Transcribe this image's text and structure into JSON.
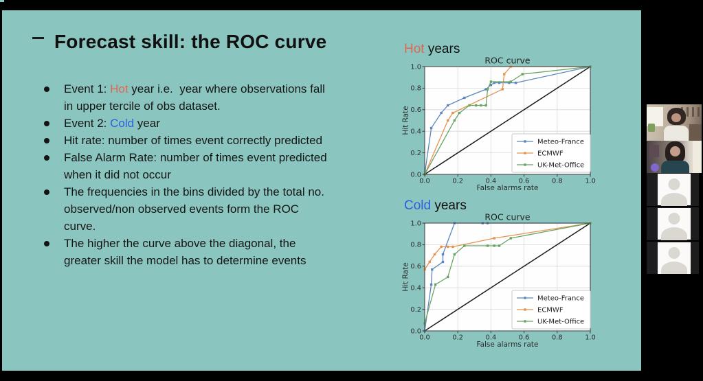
{
  "window": {
    "background": "#000000"
  },
  "slide": {
    "background": "#8ac6bf",
    "title": "Forecast skill: the ROC curve",
    "bullets": [
      {
        "segments": [
          {
            "text": "Event 1: "
          },
          {
            "text": "Hot",
            "color": "#dd6750"
          },
          {
            "text": " year i.e.  year where observations fall\nin upper tercile of obs dataset."
          }
        ]
      },
      {
        "segments": [
          {
            "text": "Event 2: "
          },
          {
            "text": "Cold",
            "color": "#2e5ee0"
          },
          {
            "text": " year"
          }
        ]
      },
      {
        "segments": [
          {
            "text": "Hit rate: number of times event correctly predicted"
          }
        ]
      },
      {
        "segments": [
          {
            "text": "False Alarm Rate: number of times event predicted\nwhen it did not occur"
          }
        ]
      },
      {
        "segments": [
          {
            "text": "The frequencies in the bins divided by the total no.\nobserved/non observed events form the ROC\ncurve."
          }
        ]
      },
      {
        "segments": [
          {
            "text": "The higher the curve above the diagonal, the\ngreater skill the model has to determine events"
          }
        ]
      }
    ]
  },
  "chart_style": {
    "plot_bg": "#fefefe",
    "grid_color": "#d8d8d8",
    "axis_color": "#3a3a3a",
    "text_color": "#2b2b2b",
    "diagonal_color": "#1c1c1c",
    "legend_bg": "#ffffff",
    "legend_border": "#c9c9c9"
  },
  "chart_data": [
    {
      "id": "hot",
      "type": "line",
      "panel_label": {
        "highlight": "Hot",
        "rest": " years",
        "highlight_color": "#dd6750"
      },
      "title": "ROC curve",
      "xlabel": "False alarms rate",
      "ylabel": "Hit Rate",
      "xlim": [
        0,
        1
      ],
      "ylim": [
        0,
        1
      ],
      "xticks": [
        "0.0",
        "0.2",
        "0.4",
        "0.6",
        "0.8",
        "1.0"
      ],
      "yticks": [
        "0.0",
        "0.2",
        "0.4",
        "0.6",
        "0.8",
        "1.0"
      ],
      "grid": true,
      "diagonal": true,
      "legend_position": "lower right",
      "series": [
        {
          "name": "Meteo-France",
          "color": "#5a87bd",
          "points": [
            [
              0,
              0
            ],
            [
              0.04,
              0.43
            ],
            [
              0.1,
              0.57
            ],
            [
              0.14,
              0.64
            ],
            [
              0.24,
              0.71
            ],
            [
              0.37,
              0.79
            ],
            [
              0.4,
              0.83
            ],
            [
              0.42,
              0.85
            ],
            [
              0.45,
              0.85
            ],
            [
              0.51,
              0.85
            ],
            [
              0.55,
              0.85
            ],
            [
              1.0,
              1.0
            ]
          ]
        },
        {
          "name": "ECMWF",
          "color": "#e59350",
          "points": [
            [
              0,
              0
            ],
            [
              0.14,
              0.5
            ],
            [
              0.17,
              0.57
            ],
            [
              0.47,
              0.79
            ],
            [
              0.48,
              0.93
            ],
            [
              0.52,
              1.0
            ],
            [
              1.0,
              1.0
            ]
          ]
        },
        {
          "name": "UK-Met-Office",
          "color": "#68a563",
          "points": [
            [
              0,
              0
            ],
            [
              0.18,
              0.5
            ],
            [
              0.21,
              0.57
            ],
            [
              0.27,
              0.64
            ],
            [
              0.31,
              0.64
            ],
            [
              0.34,
              0.64
            ],
            [
              0.37,
              0.64
            ],
            [
              0.38,
              0.79
            ],
            [
              0.4,
              0.86
            ],
            [
              0.52,
              0.86
            ],
            [
              0.59,
              0.93
            ],
            [
              1.0,
              1.0
            ]
          ]
        }
      ]
    },
    {
      "id": "cold",
      "type": "line",
      "panel_label": {
        "highlight": "Cold",
        "rest": " years",
        "highlight_color": "#2e5ee0"
      },
      "title": "ROC curve",
      "xlabel": "False alarms rate",
      "ylabel": "Hit Rate",
      "xlim": [
        0,
        1
      ],
      "ylim": [
        0,
        1
      ],
      "xticks": [
        "0.0",
        "0.2",
        "0.4",
        "0.6",
        "0.8",
        "1.0"
      ],
      "yticks": [
        "0.0",
        "0.2",
        "0.4",
        "0.6",
        "0.8",
        "1.0"
      ],
      "grid": true,
      "diagonal": true,
      "legend_position": "lower right",
      "series": [
        {
          "name": "Meteo-France",
          "color": "#5a87bd",
          "points": [
            [
              0,
              0
            ],
            [
              0.04,
              0.43
            ],
            [
              0.045,
              0.57
            ],
            [
              0.11,
              0.64
            ],
            [
              0.11,
              0.71
            ],
            [
              0.18,
              1.0
            ],
            [
              0.35,
              1.0
            ],
            [
              0.38,
              1.0
            ],
            [
              1.0,
              1.0
            ]
          ]
        },
        {
          "name": "ECMWF",
          "color": "#e59350",
          "points": [
            [
              0,
              0.57
            ],
            [
              0.03,
              0.64
            ],
            [
              0.06,
              0.71
            ],
            [
              0.1,
              0.78
            ],
            [
              0.14,
              0.78
            ],
            [
              0.17,
              0.78
            ],
            [
              0.42,
              0.86
            ],
            [
              1.0,
              1.0
            ]
          ]
        },
        {
          "name": "UK-Met-Office",
          "color": "#68a563",
          "points": [
            [
              0,
              0.07
            ],
            [
              0.065,
              0.43
            ],
            [
              0.14,
              0.5
            ],
            [
              0.18,
              0.71
            ],
            [
              0.24,
              0.79
            ],
            [
              0.38,
              0.79
            ],
            [
              0.42,
              0.79
            ],
            [
              0.45,
              0.79
            ],
            [
              0.52,
              0.86
            ],
            [
              1.0,
              1.0
            ]
          ]
        }
      ]
    }
  ],
  "participants_panel": {
    "tiles": [
      {
        "kind": "video"
      },
      {
        "kind": "video"
      },
      {
        "kind": "avatar"
      },
      {
        "kind": "avatar"
      },
      {
        "kind": "avatar"
      }
    ]
  }
}
